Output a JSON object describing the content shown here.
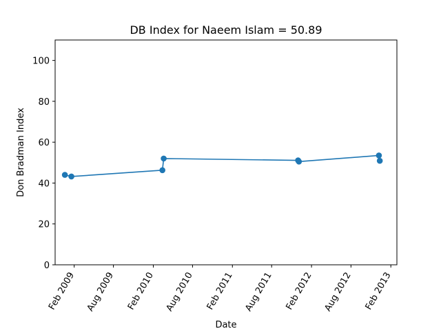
{
  "chart_data": {
    "type": "line",
    "title": "DB Index for Naeem Islam = 50.89",
    "xlabel": "Date",
    "ylabel": "Don Bradman Index",
    "xlim": [
      "2008-11-05",
      "2013-03-01"
    ],
    "ylim": [
      0,
      110
    ],
    "x_ticks": [
      {
        "date": "2009-02-01",
        "label": "Feb 2009"
      },
      {
        "date": "2009-08-01",
        "label": "Aug 2009"
      },
      {
        "date": "2010-02-01",
        "label": "Feb 2010"
      },
      {
        "date": "2010-08-01",
        "label": "Aug 2010"
      },
      {
        "date": "2011-02-01",
        "label": "Feb 2011"
      },
      {
        "date": "2011-08-01",
        "label": "Aug 2011"
      },
      {
        "date": "2012-02-01",
        "label": "Feb 2012"
      },
      {
        "date": "2012-08-01",
        "label": "Aug 2012"
      },
      {
        "date": "2013-02-01",
        "label": "Feb 2013"
      }
    ],
    "y_ticks": [
      0,
      20,
      40,
      60,
      80,
      100
    ],
    "grid": false,
    "series": [
      {
        "color": "#1f77b4",
        "points": [
          {
            "x": "2008-12-20",
            "y": 44.0
          },
          {
            "x": "2009-01-19",
            "y": 43.2
          },
          {
            "x": "2010-03-15",
            "y": 46.3
          },
          {
            "x": "2010-03-21",
            "y": 52.0
          },
          {
            "x": "2011-12-01",
            "y": 51.1
          },
          {
            "x": "2011-12-05",
            "y": 50.5
          },
          {
            "x": "2012-12-08",
            "y": 53.5
          },
          {
            "x": "2012-12-12",
            "y": 50.9
          }
        ]
      }
    ]
  }
}
